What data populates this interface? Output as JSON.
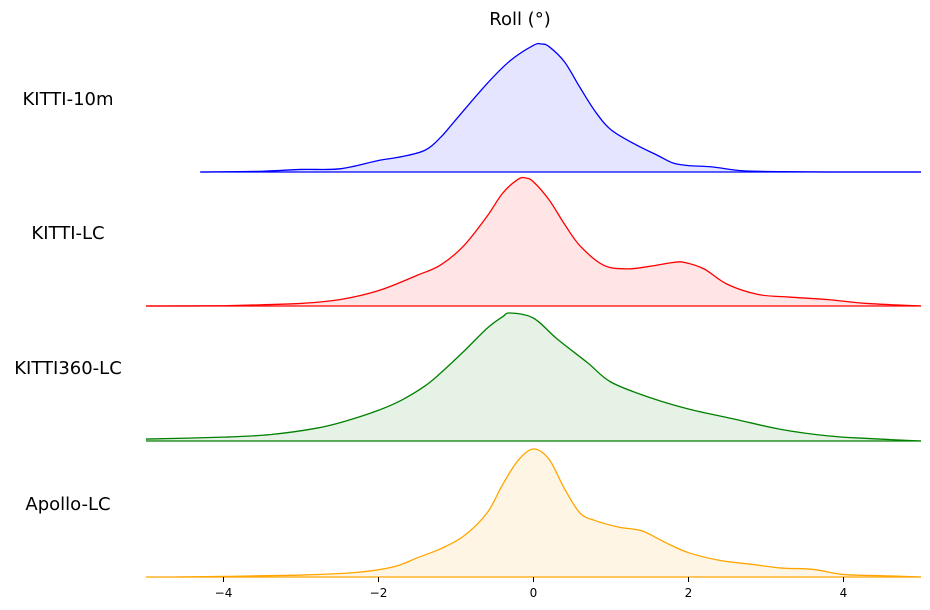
{
  "chart_data": {
    "type": "area",
    "title": "Roll (°)",
    "xlabel": "",
    "ylabel": "",
    "xlim": [
      -5,
      5
    ],
    "x_ticks": [
      -4,
      -2,
      0,
      2,
      4
    ],
    "x_tick_labels": [
      "−4",
      "−2",
      "0",
      "2",
      "4"
    ],
    "grid": false,
    "legend": "none",
    "series": [
      {
        "name": "KITTI-10m",
        "line_color": "#0000ff",
        "fill_color": "#e5e5ff",
        "x": [
          -4.3,
          -3.5,
          -3.0,
          -2.5,
          -2.0,
          -1.7,
          -1.4,
          -1.2,
          -1.0,
          -0.6,
          -0.3,
          0.0,
          0.1,
          0.2,
          0.4,
          0.6,
          0.8,
          1.0,
          1.3,
          1.6,
          1.8,
          2.0,
          2.3,
          2.7,
          3.2,
          3.8,
          4.5,
          5.0
        ],
        "y": [
          0.0,
          0.006,
          0.02,
          0.025,
          0.09,
          0.12,
          0.17,
          0.27,
          0.41,
          0.69,
          0.87,
          0.99,
          1.0,
          0.98,
          0.86,
          0.66,
          0.47,
          0.33,
          0.22,
          0.13,
          0.07,
          0.05,
          0.04,
          0.01,
          0.003,
          0.0,
          0.0,
          0.0
        ]
      },
      {
        "name": "KITTI-LC",
        "line_color": "#ff0000",
        "fill_color": "#ffe5e5",
        "x": [
          -5.0,
          -4.0,
          -3.5,
          -3.0,
          -2.5,
          -2.0,
          -1.5,
          -1.2,
          -0.9,
          -0.6,
          -0.4,
          -0.2,
          -0.1,
          0.0,
          0.2,
          0.4,
          0.6,
          0.9,
          1.2,
          1.5,
          1.8,
          1.95,
          2.2,
          2.5,
          2.9,
          3.3,
          3.8,
          4.3,
          5.0
        ],
        "y": [
          0.0,
          0.002,
          0.01,
          0.02,
          0.05,
          0.12,
          0.24,
          0.32,
          0.47,
          0.7,
          0.88,
          0.99,
          1.0,
          0.97,
          0.83,
          0.64,
          0.47,
          0.32,
          0.29,
          0.31,
          0.34,
          0.34,
          0.29,
          0.17,
          0.09,
          0.07,
          0.05,
          0.02,
          0.0
        ]
      },
      {
        "name": "KITTI360-LC",
        "line_color": "#008000",
        "fill_color": "#e5f2e5",
        "x": [
          -5.0,
          -4.0,
          -3.4,
          -2.8,
          -2.4,
          -2.0,
          -1.7,
          -1.4,
          -1.2,
          -0.9,
          -0.6,
          -0.4,
          -0.3,
          0.0,
          0.3,
          0.7,
          1.0,
          1.5,
          2.0,
          2.6,
          3.2,
          3.8,
          4.3,
          5.0
        ],
        "y": [
          0.015,
          0.03,
          0.05,
          0.1,
          0.16,
          0.24,
          0.32,
          0.43,
          0.53,
          0.7,
          0.88,
          0.97,
          1.0,
          0.96,
          0.8,
          0.61,
          0.46,
          0.34,
          0.25,
          0.17,
          0.09,
          0.04,
          0.02,
          0.0
        ]
      },
      {
        "name": "Apollo-LC",
        "line_color": "#ffa500",
        "fill_color": "#fff5e5",
        "x": [
          -4.6,
          -4.0,
          -3.0,
          -2.3,
          -1.8,
          -1.5,
          -1.2,
          -0.9,
          -0.6,
          -0.4,
          -0.2,
          0.0,
          0.2,
          0.4,
          0.6,
          0.8,
          1.1,
          1.4,
          1.7,
          2.0,
          2.4,
          2.8,
          3.2,
          3.6,
          4.0,
          4.5,
          5.0
        ],
        "y": [
          0.0,
          0.005,
          0.015,
          0.035,
          0.08,
          0.15,
          0.22,
          0.32,
          0.5,
          0.72,
          0.91,
          1.0,
          0.92,
          0.69,
          0.5,
          0.44,
          0.39,
          0.36,
          0.27,
          0.19,
          0.13,
          0.1,
          0.07,
          0.06,
          0.02,
          0.01,
          0.0
        ]
      }
    ]
  }
}
